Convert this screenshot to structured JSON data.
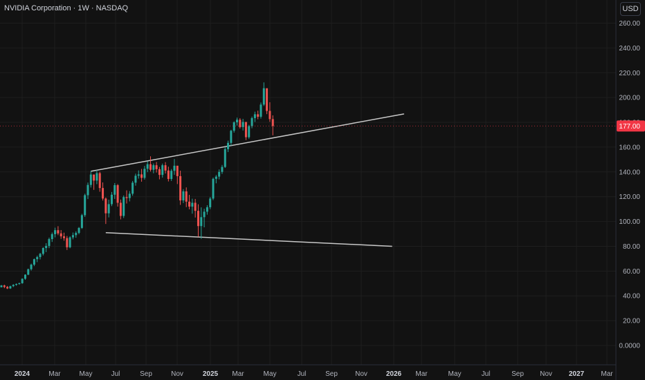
{
  "header": {
    "title": "NVIDIA Corporation · 1W · NASDAQ",
    "currency_label": "USD"
  },
  "chart_data": {
    "type": "candlestick",
    "title": "NVIDIA Corporation · 1W · NASDAQ",
    "ylim": [
      -10,
      268
    ],
    "price_ticks": [
      "260.00",
      "240.00",
      "220.00",
      "200.00",
      "180.00",
      "160.00",
      "140.00",
      "120.00",
      "100.00",
      "80.00",
      "60.00",
      "40.00",
      "20.00",
      "0.0000"
    ],
    "time_ticks": [
      {
        "label": "2024",
        "bold": true
      },
      {
        "label": "Mar",
        "bold": false
      },
      {
        "label": "May",
        "bold": false
      },
      {
        "label": "Jul",
        "bold": false
      },
      {
        "label": "Sep",
        "bold": false
      },
      {
        "label": "Nov",
        "bold": false
      },
      {
        "label": "2025",
        "bold": true
      },
      {
        "label": "Mar",
        "bold": false
      },
      {
        "label": "May",
        "bold": false
      },
      {
        "label": "Jul",
        "bold": false
      },
      {
        "label": "Sep",
        "bold": false
      },
      {
        "label": "Nov",
        "bold": false
      },
      {
        "label": "2026",
        "bold": true
      },
      {
        "label": "Mar",
        "bold": false
      },
      {
        "label": "May",
        "bold": false
      },
      {
        "label": "Jul",
        "bold": false
      },
      {
        "label": "Sep",
        "bold": false
      },
      {
        "label": "Nov",
        "bold": false
      },
      {
        "label": "2027",
        "bold": true
      },
      {
        "label": "Mar",
        "bold": false
      }
    ],
    "last_price": "177.00",
    "colors": {
      "up": "#26a69a",
      "down": "#ef5350",
      "background": "#121212",
      "grid": "#1e1e1e",
      "trendline": "#c8c8c8",
      "last_price_tag": "#f23645"
    },
    "candles": [
      [
        47.0,
        48.8,
        46.8,
        48.4
      ],
      [
        48.4,
        49.0,
        46.2,
        47.2
      ],
      [
        47.2,
        48.0,
        45.5,
        46.0
      ],
      [
        46.0,
        48.2,
        45.6,
        47.8
      ],
      [
        47.8,
        49.4,
        47.1,
        48.9
      ],
      [
        48.9,
        50.0,
        48.2,
        49.6
      ],
      [
        49.6,
        50.7,
        49.0,
        50.2
      ],
      [
        50.2,
        54.1,
        49.8,
        53.8
      ],
      [
        53.8,
        57.4,
        53.0,
        57.1
      ],
      [
        57.1,
        62.0,
        56.7,
        61.5
      ],
      [
        61.5,
        66.0,
        60.4,
        65.2
      ],
      [
        65.2,
        70.1,
        64.0,
        69.6
      ],
      [
        69.6,
        72.4,
        67.2,
        71.3
      ],
      [
        71.3,
        74.7,
        69.4,
        73.9
      ],
      [
        73.9,
        79.2,
        72.6,
        78.6
      ],
      [
        78.6,
        82.5,
        75.3,
        80.3
      ],
      [
        80.3,
        87.0,
        78.5,
        85.8
      ],
      [
        85.8,
        91.1,
        83.5,
        89.8
      ],
      [
        89.8,
        95.0,
        87.2,
        93.0
      ],
      [
        93.0,
        96.2,
        89.0,
        90.4
      ],
      [
        90.4,
        93.1,
        86.0,
        88.0
      ],
      [
        88.0,
        91.0,
        84.5,
        86.6
      ],
      [
        86.6,
        88.3,
        77.0,
        79.2
      ],
      [
        79.2,
        88.1,
        78.4,
        87.2
      ],
      [
        87.2,
        91.1,
        85.6,
        89.0
      ],
      [
        89.0,
        92.1,
        86.9,
        90.8
      ],
      [
        90.8,
        95.5,
        89.7,
        94.8
      ],
      [
        94.8,
        106.2,
        94.0,
        105.1
      ],
      [
        105.1,
        122.4,
        103.7,
        121.2
      ],
      [
        121.2,
        131.4,
        118.1,
        129.5
      ],
      [
        129.5,
        140.8,
        127.4,
        137.9
      ],
      [
        137.9,
        136.7,
        125.5,
        133.0
      ],
      [
        133.0,
        141.5,
        130.1,
        139.0
      ],
      [
        139.0,
        140.1,
        124.0,
        127.0
      ],
      [
        127.0,
        131.5,
        116.9,
        118.5
      ],
      [
        118.5,
        119.4,
        98.0,
        106.6
      ],
      [
        106.6,
        117.6,
        103.3,
        114.0
      ],
      [
        114.0,
        123.8,
        112.4,
        121.6
      ],
      [
        121.6,
        131.0,
        118.2,
        129.3
      ],
      [
        129.3,
        130.2,
        112.0,
        115.1
      ],
      [
        115.1,
        117.7,
        101.7,
        104.5
      ],
      [
        104.5,
        121.0,
        102.8,
        119.7
      ],
      [
        119.7,
        125.1,
        114.5,
        118.9
      ],
      [
        118.9,
        124.5,
        116.2,
        122.4
      ],
      [
        122.4,
        132.7,
        120.8,
        131.3
      ],
      [
        131.3,
        138.6,
        128.9,
        136.9
      ],
      [
        136.9,
        141.2,
        134.6,
        138.0
      ],
      [
        138.0,
        142.4,
        132.1,
        135.2
      ],
      [
        135.2,
        144.8,
        133.8,
        142.5
      ],
      [
        142.5,
        148.5,
        139.8,
        146.2
      ],
      [
        146.2,
        152.6,
        140.3,
        141.7
      ],
      [
        141.7,
        146.8,
        138.9,
        145.4
      ],
      [
        145.4,
        148.0,
        139.5,
        142.2
      ],
      [
        142.2,
        144.0,
        134.0,
        137.6
      ],
      [
        137.6,
        146.7,
        135.4,
        145.4
      ],
      [
        145.4,
        147.9,
        138.7,
        141.1
      ],
      [
        141.1,
        144.2,
        132.3,
        134.3
      ],
      [
        134.3,
        142.3,
        132.7,
        140.9
      ],
      [
        140.9,
        150.4,
        137.6,
        145.0
      ],
      [
        145.0,
        144.8,
        130.2,
        136.6
      ],
      [
        136.6,
        141.0,
        113.4,
        117.0
      ],
      [
        117.0,
        126.1,
        114.9,
        124.3
      ],
      [
        124.3,
        127.5,
        111.6,
        116.0
      ],
      [
        116.0,
        121.5,
        109.8,
        112.0
      ],
      [
        112.0,
        118.4,
        106.3,
        115.1
      ],
      [
        115.1,
        118.2,
        103.2,
        108.6
      ],
      [
        108.6,
        113.9,
        87.7,
        96.3
      ],
      [
        96.3,
        111.4,
        86.0,
        103.5
      ],
      [
        103.5,
        110.3,
        95.3,
        107.9
      ],
      [
        107.9,
        113.1,
        105.5,
        111.5
      ],
      [
        111.5,
        119.8,
        109.9,
        118.5
      ],
      [
        118.5,
        135.4,
        117.2,
        134.4
      ],
      [
        134.4,
        137.5,
        130.8,
        136.2
      ],
      [
        136.2,
        142.0,
        134.0,
        140.0
      ],
      [
        140.0,
        145.6,
        138.4,
        144.0
      ],
      [
        144.0,
        160.2,
        143.2,
        158.4
      ],
      [
        158.4,
        165.2,
        156.0,
        163.4
      ],
      [
        163.4,
        174.0,
        161.2,
        173.2
      ],
      [
        173.2,
        180.8,
        171.7,
        180.0
      ],
      [
        180.0,
        183.8,
        177.4,
        182.1
      ],
      [
        182.1,
        183.4,
        175.0,
        176.2
      ],
      [
        176.2,
        182.8,
        173.4,
        180.3
      ],
      [
        180.3,
        179.8,
        165.7,
        168.0
      ],
      [
        168.0,
        178.0,
        166.8,
        176.9
      ],
      [
        176.9,
        184.6,
        175.2,
        183.4
      ],
      [
        183.4,
        188.6,
        180.3,
        186.5
      ],
      [
        186.5,
        189.4,
        182.5,
        184.5
      ],
      [
        184.5,
        196.0,
        183.0,
        194.3
      ],
      [
        194.3,
        212.2,
        193.2,
        207.5
      ],
      [
        207.5,
        206.4,
        186.6,
        189.2
      ],
      [
        189.2,
        196.2,
        180.4,
        182.6
      ],
      [
        182.6,
        185.6,
        169.5,
        177.0
      ]
    ],
    "trendlines": [
      {
        "name": "upper-trendline",
        "from": [
          30,
          140.5
        ],
        "to": [
          135,
          186.8
        ]
      },
      {
        "name": "lower-trendline",
        "from": [
          35,
          91.0
        ],
        "to": [
          131,
          80.0
        ]
      }
    ]
  }
}
